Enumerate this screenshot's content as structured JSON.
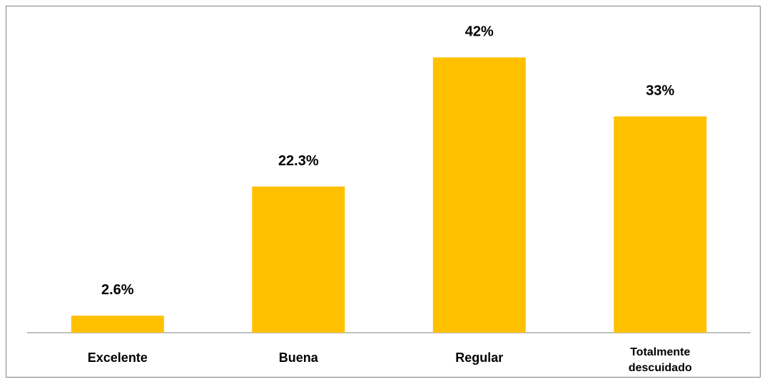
{
  "chart_data": {
    "type": "bar",
    "categories": [
      "Excelente",
      "Buena",
      "Regular",
      "Totalmente descuidado"
    ],
    "category_lines": [
      [
        "Excelente"
      ],
      [
        "Buena"
      ],
      [
        "Regular"
      ],
      [
        "Totalmente",
        "descuidado"
      ]
    ],
    "values": [
      2.6,
      22.3,
      42,
      33
    ],
    "data_labels": [
      "2.6%",
      "22.3%",
      "42%",
      "33%"
    ],
    "unit": "%",
    "ylim": [
      0,
      45
    ],
    "grid": false,
    "legend": "none",
    "bar_color": "#FFC000",
    "axis_color": "#7F7F7F"
  }
}
